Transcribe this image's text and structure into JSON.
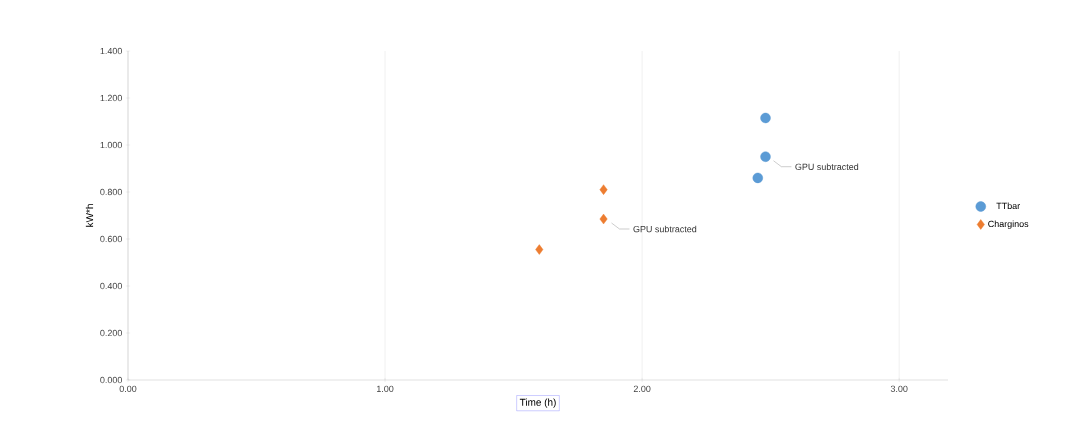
{
  "chart_data": {
    "type": "scatter",
    "xlabel": "Time (h)",
    "ylabel": "kW*h",
    "xlim": [
      0,
      3.19
    ],
    "ylim": [
      0,
      1.4
    ],
    "xticks": [
      {
        "value": 0,
        "label": "0.00"
      },
      {
        "value": 1,
        "label": "1.00"
      },
      {
        "value": 2,
        "label": "2.00"
      },
      {
        "value": 3,
        "label": "3.00"
      }
    ],
    "yticks": [
      {
        "value": 0,
        "label": "0.000"
      },
      {
        "value": 0.2,
        "label": "0.200"
      },
      {
        "value": 0.4,
        "label": "0.400"
      },
      {
        "value": 0.6,
        "label": "0.600"
      },
      {
        "value": 0.8,
        "label": "0.800"
      },
      {
        "value": 1.0,
        "label": "1.000"
      },
      {
        "value": 1.2,
        "label": "1.200"
      },
      {
        "value": 1.4,
        "label": "1.400"
      }
    ],
    "grid": "x",
    "legend": "right",
    "series": [
      {
        "name": "TTbar",
        "color": "#5b9bd5",
        "marker": "circle",
        "x": [
          2.48,
          2.48,
          2.45
        ],
        "values": [
          1.115,
          0.95,
          0.86
        ]
      },
      {
        "name": "Charginos",
        "color": "#ed7d31",
        "marker": "diamond",
        "x": [
          1.85,
          1.85,
          1.6
        ],
        "values": [
          0.81,
          0.685,
          0.555
        ]
      }
    ],
    "annotations": [
      {
        "text": "GPU subtracted",
        "x": 2.48,
        "y": 0.95
      },
      {
        "text": "GPU subtracted",
        "x": 1.85,
        "y": 0.685
      }
    ]
  }
}
